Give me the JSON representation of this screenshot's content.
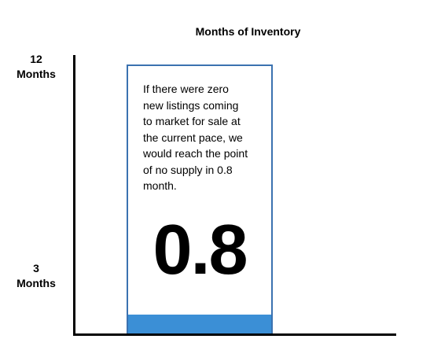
{
  "chart_data": {
    "type": "bar",
    "title": "Months of Inventory",
    "yticks": [
      {
        "value": 12,
        "label_line1": "12",
        "label_line2": "Months"
      },
      {
        "value": 3,
        "label_line1": "3",
        "label_line2": "Months"
      }
    ],
    "ylim": [
      0,
      12
    ],
    "grid": false,
    "series": [
      {
        "values": [
          0.8
        ]
      }
    ],
    "bar_color": "#3b8fd6",
    "callout_border_color": "#3b72b0",
    "annotation": {
      "lines": [
        "If there were zero",
        "new listings coming",
        "to market for sale at",
        "the current pace, we",
        "would reach the point",
        "of no supply in 0.8",
        "month."
      ],
      "value_label": "0.8"
    }
  }
}
